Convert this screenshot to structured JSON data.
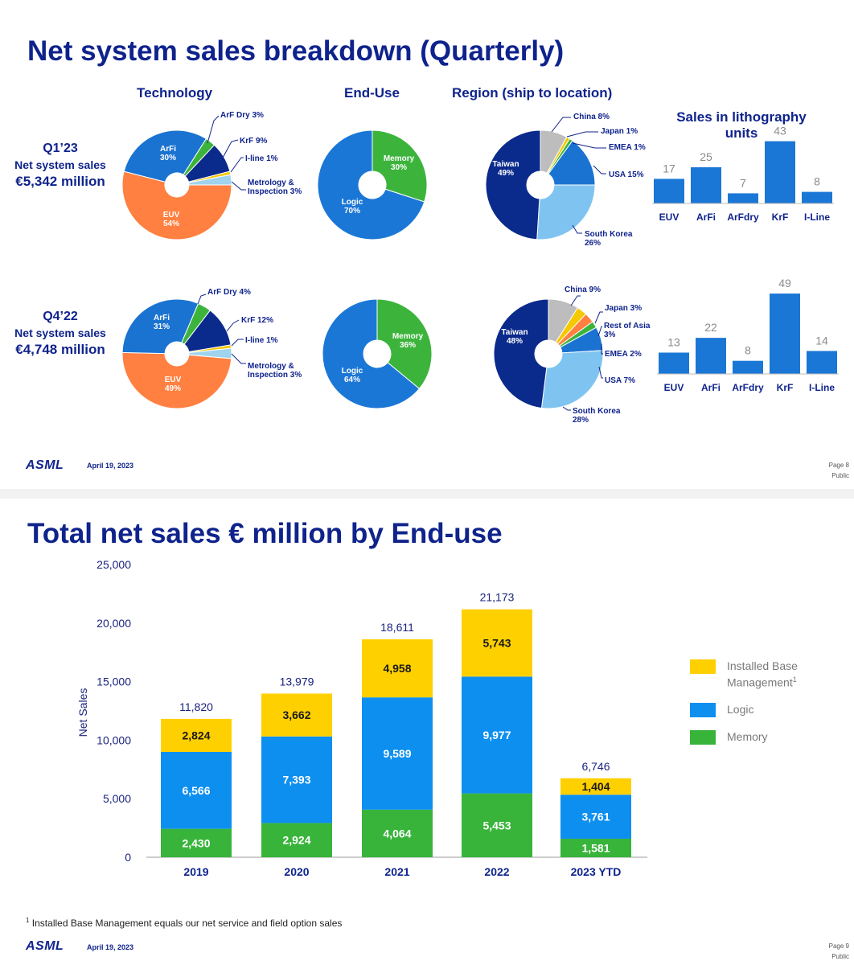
{
  "slide1": {
    "title": "Net system sales breakdown (Quarterly)",
    "headers": {
      "technology": "Technology",
      "end_use": "End-Use",
      "region": "Region (ship to location)",
      "units_line1": "Sales in lithography",
      "units_line2": "units"
    },
    "q1": {
      "quarter": "Q1’23",
      "net_label": "Net system sales",
      "amount": "€5,342 million"
    },
    "q4": {
      "quarter": "Q4’22",
      "net_label": "Net system sales",
      "amount": "€4,748 million"
    },
    "footer": {
      "logo": "ASML",
      "date": "April 19, 2023",
      "page": "Page 8",
      "class": "Public"
    }
  },
  "slide2": {
    "title": "Total net sales € million by End-use",
    "footnote": "Installed Base Management equals our net service and field option sales",
    "footnote_mark": "1",
    "legend": {
      "ibm": "Installed Base",
      "ibm2": "Management",
      "ibm_sup": "1",
      "logic": "Logic",
      "memory": "Memory"
    },
    "footer": {
      "logo": "ASML",
      "date": "April 19, 2023",
      "page": "Page 9",
      "class": "Public"
    }
  },
  "colors": {
    "navy": "#0f238c",
    "euv": "#ff8040",
    "arfi": "#1a73d1",
    "arfdry": "#3cb43c",
    "krf": "#0a2a8c",
    "iline": "#f5c800",
    "metrology": "#9fd3ee",
    "logic": "#1b77d6",
    "memory": "#3cb43c",
    "taiwan": "#0a2a8c",
    "southkorea": "#7fc4f0",
    "usa": "#1a73d1",
    "emea": "#3cb43c",
    "japan": "#f5c800",
    "china": "#bdbdbd",
    "restasia": "#ff8040",
    "bar_ibm": "#ffd000",
    "bar_logic": "#0d8ff0",
    "bar_memory": "#38b43a"
  },
  "chart_data": [
    {
      "id": "q1_technology",
      "type": "pie",
      "title": "Technology",
      "quarter": "Q1’23",
      "slices": [
        {
          "name": "EUV",
          "value": 54,
          "label": "EUV\n54%"
        },
        {
          "name": "ArFi",
          "value": 30,
          "label": "ArFi\n30%"
        },
        {
          "name": "ArF Dry",
          "value": 3,
          "label": "ArF Dry 3%"
        },
        {
          "name": "KrF",
          "value": 9,
          "label": "KrF 9%"
        },
        {
          "name": "I-line",
          "value": 1,
          "label": "I-line 1%"
        },
        {
          "name": "Metrology & Inspection",
          "value": 3,
          "label": "Metrology &\nInspection 3%"
        }
      ]
    },
    {
      "id": "q1_enduse",
      "type": "pie",
      "title": "End-Use",
      "quarter": "Q1’23",
      "slices": [
        {
          "name": "Memory",
          "value": 30,
          "label": "Memory\n30%"
        },
        {
          "name": "Logic",
          "value": 70,
          "label": "Logic\n70%"
        }
      ]
    },
    {
      "id": "q1_region",
      "type": "pie",
      "title": "Region (ship to location)",
      "quarter": "Q1’23",
      "slices": [
        {
          "name": "China",
          "value": 8,
          "label": "China 8%"
        },
        {
          "name": "Japan",
          "value": 1,
          "label": "Japan 1%"
        },
        {
          "name": "EMEA",
          "value": 1,
          "label": "EMEA 1%"
        },
        {
          "name": "USA",
          "value": 15,
          "label": "USA 15%"
        },
        {
          "name": "South Korea",
          "value": 26,
          "label": "South Korea\n26%"
        },
        {
          "name": "Taiwan",
          "value": 49,
          "label": "Taiwan\n49%"
        }
      ]
    },
    {
      "id": "q1_units",
      "type": "bar",
      "title": "Sales in lithography units",
      "quarter": "Q1’23",
      "categories": [
        "EUV",
        "ArFi",
        "ArFdry",
        "KrF",
        "I-Line"
      ],
      "values": [
        17,
        25,
        7,
        43,
        8
      ]
    },
    {
      "id": "q4_technology",
      "type": "pie",
      "title": "Technology",
      "quarter": "Q4’22",
      "slices": [
        {
          "name": "EUV",
          "value": 49,
          "label": "EUV\n49%"
        },
        {
          "name": "ArFi",
          "value": 31,
          "label": "ArFi\n31%"
        },
        {
          "name": "ArF Dry",
          "value": 4,
          "label": "ArF Dry 4%"
        },
        {
          "name": "KrF",
          "value": 12,
          "label": "KrF 12%"
        },
        {
          "name": "I-line",
          "value": 1,
          "label": "I-line 1%"
        },
        {
          "name": "Metrology & Inspection",
          "value": 3,
          "label": "Metrology &\nInspection 3%"
        }
      ]
    },
    {
      "id": "q4_enduse",
      "type": "pie",
      "title": "End-Use",
      "quarter": "Q4’22",
      "slices": [
        {
          "name": "Memory",
          "value": 36,
          "label": "Memory\n36%"
        },
        {
          "name": "Logic",
          "value": 64,
          "label": "Logic\n64%"
        }
      ]
    },
    {
      "id": "q4_region",
      "type": "pie",
      "title": "Region (ship to location)",
      "quarter": "Q4’22",
      "slices": [
        {
          "name": "China",
          "value": 9,
          "label": "China 9%"
        },
        {
          "name": "Japan",
          "value": 3,
          "label": "Japan 3%"
        },
        {
          "name": "Rest of Asia",
          "value": 3,
          "label": "Rest of Asia\n3%"
        },
        {
          "name": "EMEA",
          "value": 2,
          "label": "EMEA 2%"
        },
        {
          "name": "USA",
          "value": 7,
          "label": "USA 7%"
        },
        {
          "name": "South Korea",
          "value": 28,
          "label": "South Korea\n28%"
        },
        {
          "name": "Taiwan",
          "value": 48,
          "label": "Taiwan\n48%"
        }
      ]
    },
    {
      "id": "q4_units",
      "type": "bar",
      "title": "Sales in lithography units",
      "quarter": "Q4’22",
      "categories": [
        "EUV",
        "ArFi",
        "ArFdry",
        "KrF",
        "I-Line"
      ],
      "values": [
        13,
        22,
        8,
        49,
        14
      ]
    },
    {
      "id": "end_use_sales",
      "type": "bar",
      "stacked": true,
      "title": "Total net sales € million by End-use",
      "ylabel": "Net Sales",
      "ylim": [
        0,
        25000
      ],
      "yticks": [
        0,
        5000,
        10000,
        15000,
        20000,
        25000
      ],
      "ytick_labels": [
        "0",
        "5,000",
        "10,000",
        "15,000",
        "20,000",
        "25,000"
      ],
      "categories": [
        "2019",
        "2020",
        "2021",
        "2022",
        "2023 YTD"
      ],
      "totals": [
        11820,
        13979,
        18611,
        21173,
        6746
      ],
      "total_labels": [
        "11,820",
        "13,979",
        "18,611",
        "21,173",
        "6,746"
      ],
      "series": [
        {
          "name": "Memory",
          "values": [
            2430,
            2924,
            4064,
            5453,
            1581
          ],
          "labels": [
            "2,430",
            "2,924",
            "4,064",
            "5,453",
            "1,581"
          ]
        },
        {
          "name": "Logic",
          "values": [
            6566,
            7393,
            9589,
            9977,
            3761
          ],
          "labels": [
            "6,566",
            "7,393",
            "9,589",
            "9,977",
            "3,761"
          ]
        },
        {
          "name": "Installed Base Management",
          "values": [
            2824,
            3662,
            4958,
            5743,
            1404
          ],
          "labels": [
            "2,824",
            "3,662",
            "4,958",
            "5,743",
            "1,404"
          ]
        }
      ]
    }
  ]
}
